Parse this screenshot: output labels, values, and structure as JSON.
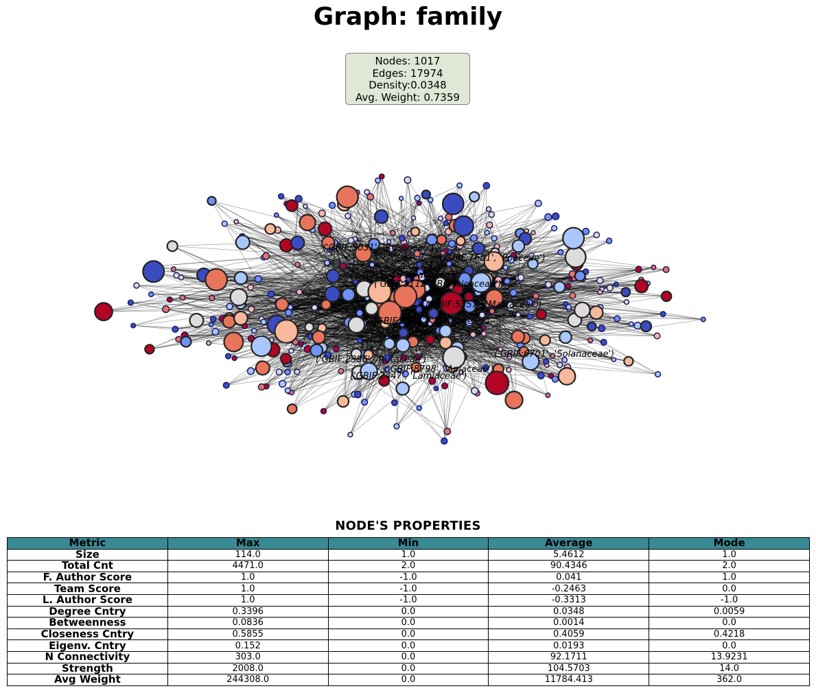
{
  "title": "Graph: family",
  "stats": {
    "nodes": "Nodes: 1017",
    "edges": "Edges: 17974",
    "density": "Density:0.0348",
    "avg_weight": "Avg. Weight: 0.7359"
  },
  "node_labels": [
    "('GBIF:5031', 'Rosaceae')",
    "('GBIF:7681', 'Poaceae')",
    "('GBIF:5386', 'Fabaceae')",
    "('GBIF:3112', 'Brassicaceae')",
    "('GBIF:5357', 'Malvaceae')",
    "('GBIF:3065', 'Asteraceae')",
    "('GBIF:2396', 'Rutaceae')",
    "('GBIF:6701', 'Solanaceae')",
    "('GBIF:8798', 'Apiaceae')",
    "('GBIF:2447', 'Lamiaceae')"
  ],
  "colors": {
    "header_bg": "#3a8a96",
    "stats_bg": "#dfe8d6",
    "node_palette": [
      "#3b4cc0",
      "#6f92f3",
      "#aac7fd",
      "#dddcdc",
      "#f7b89c",
      "#e7745b",
      "#b40426"
    ]
  },
  "table": {
    "title": "NODE'S PROPERTIES",
    "headers": [
      "Metric",
      "Max",
      "Min",
      "Average",
      "Mode"
    ],
    "rows": [
      [
        "Size",
        "114.0",
        "1.0",
        "5.4612",
        "1.0"
      ],
      [
        "Total Cnt",
        "4471.0",
        "2.0",
        "90.4346",
        "2.0"
      ],
      [
        "F. Author Score",
        "1.0",
        "-1.0",
        "0.041",
        "1.0"
      ],
      [
        "Team Score",
        "1.0",
        "-1.0",
        "-0.2463",
        "0.0"
      ],
      [
        "L. Author Score",
        "1.0",
        "-1.0",
        "-0.3313",
        "-1.0"
      ],
      [
        "Degree Cntry",
        "0.3396",
        "0.0",
        "0.0348",
        "0.0059"
      ],
      [
        "Betweenness",
        "0.0836",
        "0.0",
        "0.0014",
        "0.0"
      ],
      [
        "Closeness Cntry",
        "0.5855",
        "0.0",
        "0.4059",
        "0.4218"
      ],
      [
        "Eigenv. Cntry",
        "0.152",
        "0.0",
        "0.0193",
        "0.0"
      ],
      [
        "N Connectivity",
        "303.0",
        "0.0",
        "92.1711",
        "13.9231"
      ],
      [
        "Strength",
        "2008.0",
        "0.0",
        "104.5703",
        "14.0"
      ],
      [
        "Avg Weight",
        "244308.0",
        "0.0",
        "11784.413",
        "362.0"
      ]
    ]
  }
}
